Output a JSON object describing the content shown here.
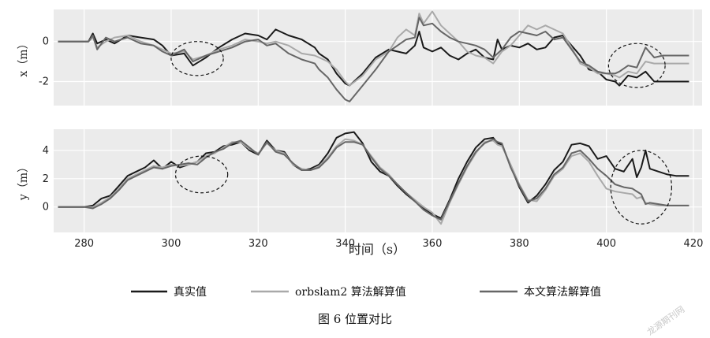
{
  "chart_data": [
    {
      "type": "line",
      "ylabel": "x（m）",
      "xlim": [
        273,
        422
      ],
      "ylim": [
        -3.2,
        1.6
      ],
      "yticks": [
        -2,
        0
      ],
      "grid": true,
      "series": [
        {
          "name": "真实值",
          "color": "#1a1a1a",
          "width": 2.0,
          "x": [
            274,
            281,
            282,
            283,
            285,
            287,
            290,
            293,
            296,
            298,
            300,
            303,
            305,
            308,
            311,
            314,
            317,
            320,
            322,
            324,
            327,
            330,
            333,
            334,
            336,
            338,
            340,
            341,
            344,
            347,
            350,
            352,
            354,
            356,
            357,
            358,
            360,
            362,
            364,
            366,
            368,
            370,
            372,
            374,
            375,
            376,
            378,
            380,
            382,
            384,
            386,
            388,
            390,
            392,
            394,
            396,
            398,
            400,
            402,
            403,
            405,
            407,
            409,
            411,
            413,
            416,
            419
          ],
          "y": [
            0,
            0,
            0.4,
            -0.1,
            0.1,
            -0.1,
            0.3,
            0.2,
            0.1,
            -0.2,
            -0.7,
            -0.6,
            -1.2,
            -0.8,
            -0.3,
            0.1,
            0.4,
            0.3,
            0.1,
            0.6,
            0.3,
            0.1,
            -0.3,
            -0.6,
            -0.9,
            -1.6,
            -2.1,
            -2.2,
            -1.6,
            -0.8,
            -0.4,
            -0.5,
            -0.6,
            -0.2,
            0.5,
            -0.3,
            -0.5,
            -0.3,
            -0.7,
            -0.9,
            -0.6,
            -0.4,
            -0.8,
            -0.9,
            0.1,
            -0.4,
            -0.2,
            -0.3,
            -0.1,
            -0.4,
            -0.3,
            0.2,
            0.3,
            -0.2,
            -0.7,
            -1.4,
            -1.5,
            -1.9,
            -2.0,
            -2.2,
            -1.7,
            -1.8,
            -1.5,
            -2.0,
            -2.0,
            -2.0,
            -2.0
          ]
        },
        {
          "name": "orbslam2 算法解算值",
          "color": "#a9a9a9",
          "width": 2.0,
          "x": [
            274,
            281,
            282,
            283,
            285,
            287,
            290,
            293,
            296,
            298,
            300,
            303,
            305,
            308,
            311,
            314,
            317,
            320,
            322,
            324,
            327,
            330,
            333,
            334,
            336,
            338,
            340,
            341,
            344,
            347,
            350,
            352,
            354,
            356,
            357,
            358,
            360,
            362,
            364,
            366,
            368,
            370,
            372,
            374,
            375,
            376,
            378,
            380,
            382,
            384,
            386,
            388,
            390,
            392,
            394,
            396,
            398,
            400,
            402,
            403,
            405,
            407,
            409,
            411,
            413,
            416,
            419
          ],
          "y": [
            0,
            0,
            0.2,
            -0.3,
            0,
            0.2,
            0.3,
            0,
            -0.2,
            -0.4,
            -0.6,
            -0.5,
            -0.9,
            -0.7,
            -0.4,
            -0.2,
            0.1,
            0,
            -0.1,
            0,
            -0.2,
            -0.6,
            -0.7,
            -0.8,
            -1.0,
            -1.4,
            -2.0,
            -2.2,
            -1.7,
            -0.9,
            -0.5,
            0.2,
            0.6,
            0.3,
            1.4,
            0.9,
            1.5,
            0.8,
            0.4,
            0,
            -0.5,
            -0.7,
            -0.8,
            -1.1,
            -0.8,
            -0.5,
            -0.2,
            0.3,
            0.8,
            0.6,
            0.8,
            0.6,
            0.4,
            -0.3,
            -1.1,
            -1.3,
            -1.6,
            -1.6,
            -1.7,
            -1.8,
            -1.5,
            -1.6,
            -1.0,
            -1.1,
            -1.1,
            -1.1,
            -1.1
          ]
        },
        {
          "name": "本文算法解算值",
          "color": "#666666",
          "width": 2.0,
          "x": [
            274,
            281,
            282,
            283,
            285,
            287,
            290,
            293,
            296,
            298,
            300,
            303,
            305,
            308,
            311,
            314,
            317,
            320,
            322,
            324,
            327,
            330,
            333,
            334,
            336,
            338,
            340,
            341,
            344,
            347,
            350,
            352,
            354,
            356,
            357,
            358,
            360,
            362,
            364,
            366,
            368,
            370,
            372,
            374,
            375,
            376,
            378,
            380,
            382,
            384,
            386,
            388,
            390,
            392,
            394,
            396,
            398,
            400,
            402,
            403,
            405,
            407,
            409,
            411,
            413,
            416,
            419
          ],
          "y": [
            0,
            0,
            0.3,
            -0.4,
            0.2,
            0,
            0.2,
            -0.1,
            -0.2,
            -0.5,
            -0.7,
            -0.4,
            -1.0,
            -0.7,
            -0.5,
            -0.3,
            0,
            0.1,
            -0.2,
            -0.1,
            -0.6,
            -0.9,
            -1.1,
            -1.4,
            -1.8,
            -2.4,
            -2.9,
            -3.0,
            -2.2,
            -1.4,
            -0.5,
            -0.2,
            0.1,
            0.2,
            1.2,
            0.8,
            0.9,
            0.5,
            0.2,
            0,
            -0.1,
            -0.2,
            -0.4,
            -0.8,
            -0.6,
            -0.4,
            0.2,
            0.5,
            0.4,
            0.3,
            0.5,
            0.1,
            0.2,
            -0.4,
            -1.0,
            -1.2,
            -1.5,
            -1.6,
            -1.6,
            -1.5,
            -1.2,
            -1.3,
            -0.3,
            -0.8,
            -0.7,
            -0.7,
            -0.7
          ]
        }
      ],
      "annotations": [
        {
          "shape": "dashed-ellipse",
          "cx": 306,
          "cy": -0.85,
          "rx": 6,
          "ry": 0.85
        },
        {
          "shape": "dashed-ellipse",
          "cx": 407,
          "cy": -1.2,
          "rx": 6.5,
          "ry": 1.1
        }
      ]
    },
    {
      "type": "line",
      "ylabel": "y（m）",
      "xlabel": "时间（s）",
      "xlim": [
        273,
        422
      ],
      "ylim": [
        -1.8,
        5.5
      ],
      "xticks": [
        280,
        300,
        320,
        340,
        360,
        380,
        400,
        420
      ],
      "yticks": [
        0,
        2,
        4
      ],
      "grid": true,
      "series": [
        {
          "name": "真实值",
          "color": "#1a1a1a",
          "width": 2.0,
          "x": [
            274,
            280,
            282,
            284,
            286,
            288,
            290,
            292,
            294,
            296,
            298,
            300,
            302,
            304,
            306,
            308,
            310,
            312,
            314,
            316,
            318,
            320,
            322,
            324,
            326,
            328,
            330,
            332,
            334,
            336,
            338,
            340,
            342,
            344,
            346,
            348,
            350,
            352,
            354,
            356,
            358,
            360,
            362,
            364,
            366,
            368,
            370,
            372,
            374,
            375,
            376,
            378,
            380,
            382,
            384,
            386,
            388,
            390,
            392,
            394,
            396,
            398,
            400,
            402,
            404,
            406,
            407,
            408,
            409,
            410,
            412,
            414,
            416,
            419
          ],
          "y": [
            0,
            0,
            0.1,
            0.6,
            0.8,
            1.5,
            2.2,
            2.5,
            2.8,
            3.3,
            2.7,
            3.2,
            2.8,
            3.0,
            3.2,
            3.8,
            3.9,
            4.3,
            4.4,
            4.6,
            4.0,
            3.7,
            4.7,
            4.0,
            3.9,
            3.0,
            2.6,
            2.7,
            3.0,
            3.8,
            4.9,
            5.2,
            5.3,
            4.5,
            3.2,
            2.5,
            2.2,
            1.5,
            0.9,
            0.4,
            -0.1,
            -0.5,
            -0.8,
            0.5,
            2.0,
            3.2,
            4.2,
            4.8,
            4.9,
            4.5,
            4.4,
            2.9,
            1.4,
            0.3,
            0.8,
            1.6,
            2.6,
            3.2,
            4.4,
            4.5,
            4.3,
            3.4,
            3.6,
            2.7,
            2.5,
            3.4,
            2.1,
            2.8,
            4.0,
            2.7,
            2.5,
            2.3,
            2.2,
            2.2
          ]
        },
        {
          "name": "orbslam2 算法解算值",
          "color": "#a9a9a9",
          "width": 2.0,
          "x": [
            274,
            280,
            282,
            284,
            286,
            288,
            290,
            292,
            294,
            296,
            298,
            300,
            302,
            304,
            306,
            308,
            310,
            312,
            314,
            316,
            318,
            320,
            322,
            324,
            326,
            328,
            330,
            332,
            334,
            336,
            338,
            340,
            342,
            344,
            346,
            348,
            350,
            352,
            354,
            356,
            358,
            360,
            362,
            364,
            366,
            368,
            370,
            372,
            374,
            375,
            376,
            378,
            380,
            382,
            384,
            386,
            388,
            390,
            392,
            394,
            396,
            398,
            400,
            402,
            404,
            406,
            407,
            408,
            409,
            410,
            412,
            414,
            416,
            419
          ],
          "y": [
            0,
            0,
            0,
            0.3,
            0.7,
            1.3,
            2.0,
            2.3,
            2.6,
            2.9,
            2.8,
            3.0,
            2.9,
            3.0,
            3.2,
            3.6,
            3.8,
            4.2,
            4.6,
            4.6,
            4.1,
            3.8,
            4.5,
            4.0,
            3.8,
            3.0,
            2.7,
            2.6,
            2.9,
            3.5,
            4.3,
            4.8,
            4.7,
            4.4,
            3.6,
            2.8,
            2.3,
            1.6,
            1.0,
            0.5,
            0,
            -0.4,
            -1.2,
            0.3,
            1.6,
            2.8,
            3.8,
            4.6,
            4.7,
            4.4,
            4.3,
            3.0,
            1.6,
            0.5,
            0.4,
            1.2,
            2.2,
            2.7,
            3.6,
            3.8,
            3.2,
            2.2,
            1.3,
            1.1,
            1.0,
            0.9,
            0.6,
            0.7,
            0.3,
            0.2,
            0.1,
            0.1,
            0.1,
            0.1
          ]
        },
        {
          "name": "本文算法解算值",
          "color": "#666666",
          "width": 2.0,
          "x": [
            274,
            280,
            282,
            284,
            286,
            288,
            290,
            292,
            294,
            296,
            298,
            300,
            302,
            304,
            306,
            308,
            310,
            312,
            314,
            316,
            318,
            320,
            322,
            324,
            326,
            328,
            330,
            332,
            334,
            336,
            338,
            340,
            342,
            344,
            346,
            348,
            350,
            352,
            354,
            356,
            358,
            360,
            362,
            364,
            366,
            368,
            370,
            372,
            374,
            375,
            376,
            378,
            380,
            382,
            384,
            386,
            388,
            390,
            392,
            394,
            396,
            398,
            400,
            402,
            404,
            406,
            407,
            408,
            409,
            410,
            412,
            414,
            416,
            419
          ],
          "y": [
            0,
            0,
            -0.1,
            0.2,
            0.6,
            1.2,
            1.9,
            2.2,
            2.5,
            2.8,
            2.7,
            2.9,
            3.0,
            3.1,
            3.0,
            3.5,
            3.9,
            4.1,
            4.5,
            4.7,
            4.2,
            3.7,
            4.6,
            3.9,
            3.7,
            3.1,
            2.6,
            2.6,
            2.8,
            3.4,
            4.2,
            4.6,
            4.6,
            4.4,
            3.5,
            2.7,
            2.2,
            1.6,
            1.0,
            0.4,
            -0.2,
            -0.6,
            -0.9,
            0.4,
            1.7,
            2.9,
            3.9,
            4.5,
            4.8,
            4.6,
            4.5,
            2.8,
            1.5,
            0.4,
            0.6,
            1.3,
            2.3,
            2.8,
            3.8,
            4.0,
            3.4,
            2.7,
            2.2,
            1.6,
            1.4,
            1.3,
            1.1,
            0.9,
            0.2,
            0.3,
            0.2,
            0.1,
            0.1,
            0.1
          ]
        }
      ],
      "annotations": [
        {
          "shape": "dashed-ellipse",
          "cx": 307,
          "cy": 2.3,
          "rx": 6,
          "ry": 1.3
        },
        {
          "shape": "dashed-ellipse",
          "cx": 408,
          "cy": 1.4,
          "rx": 7,
          "ry": 2.6
        }
      ]
    }
  ],
  "legend": {
    "placement": "bottom",
    "items": [
      {
        "label": "真实值",
        "color": "#1a1a1a"
      },
      {
        "label": "orbslam2 算法解算值",
        "color": "#a9a9a9"
      },
      {
        "label": "本文算法解算值",
        "color": "#666666"
      }
    ]
  },
  "caption": "图 6 位置对比",
  "watermark": "龙源期刊网"
}
